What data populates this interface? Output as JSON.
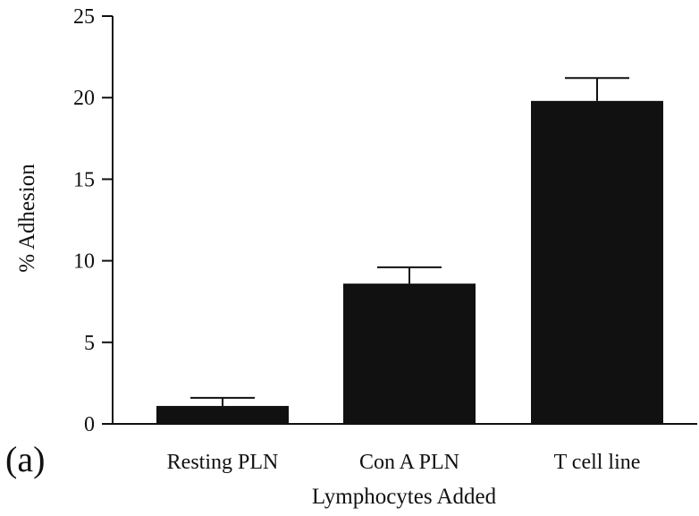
{
  "panel_label": "(a)",
  "chart_data": {
    "type": "bar",
    "categories": [
      "Resting PLN",
      "Con A PLN",
      "T cell line"
    ],
    "values": [
      1.1,
      8.6,
      19.8
    ],
    "error_bars_upper": [
      1.6,
      9.6,
      21.2
    ],
    "xlabel": "Lymphocytes Added",
    "ylabel": "% Adhesion",
    "ylim": [
      0,
      25
    ],
    "yticks": [
      0,
      5,
      10,
      15,
      20,
      25
    ],
    "grid": false,
    "bar_color": "#111111",
    "axis_color": "#111111"
  }
}
